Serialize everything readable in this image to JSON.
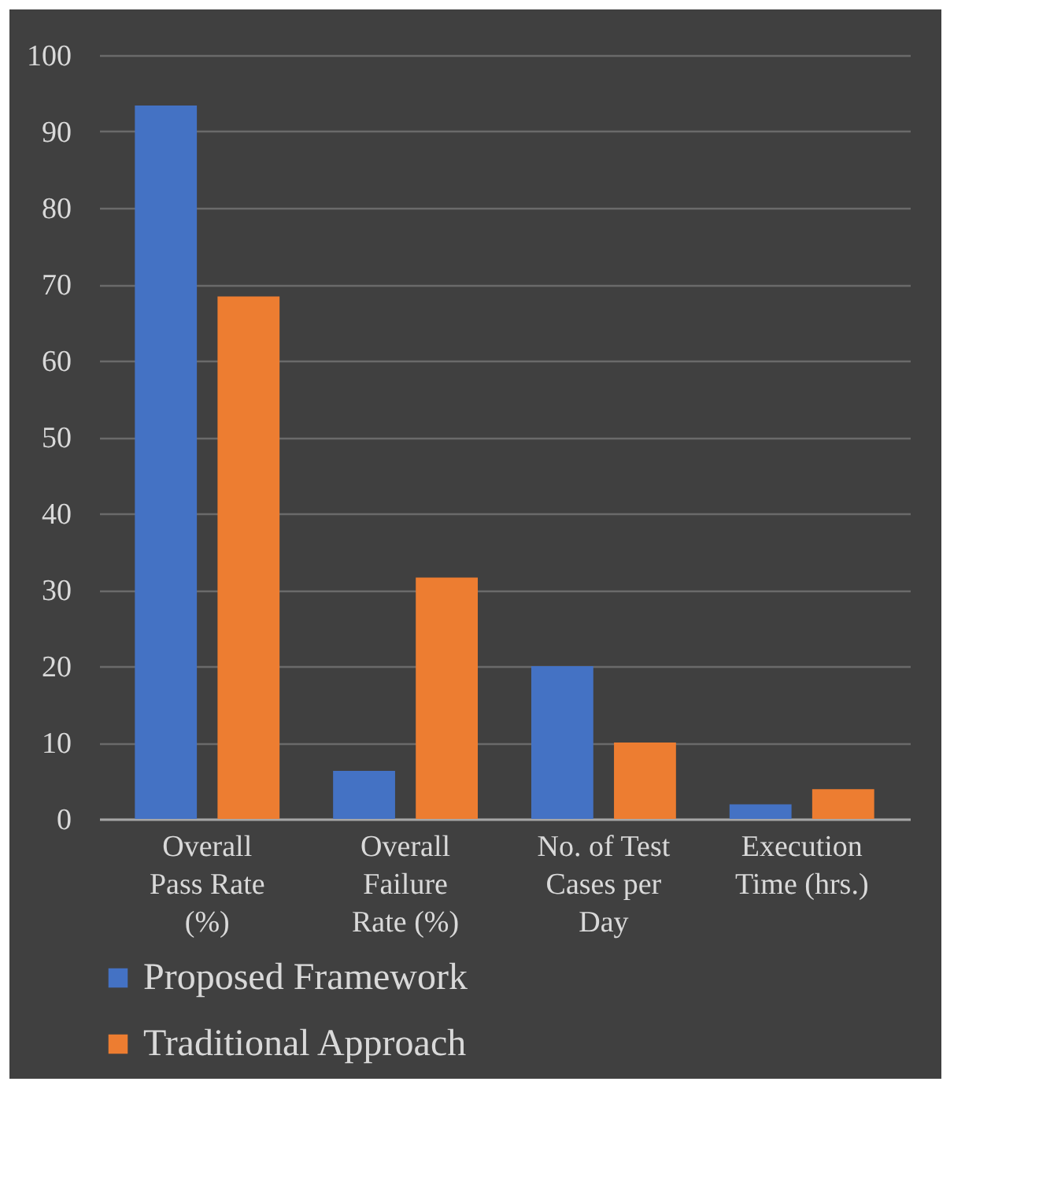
{
  "chart_data": {
    "type": "bar",
    "categories": [
      "Overall Pass Rate (%)",
      "Overall Failure Rate (%)",
      "No. of Test Cases per Day",
      "Execution Time (hrs.)"
    ],
    "series": [
      {
        "name": "Proposed Framework",
        "color": "#4472c4",
        "values": [
          93.4,
          6.3,
          20,
          1.9
        ]
      },
      {
        "name": "Traditional Approach",
        "color": "#ed7d31",
        "values": [
          68.4,
          31.6,
          10,
          3.9
        ]
      }
    ],
    "ylim": [
      0,
      100
    ],
    "yticks": [
      0,
      10,
      20,
      30,
      40,
      50,
      60,
      70,
      80,
      90,
      100
    ],
    "grid": "y",
    "legend": "bottom"
  }
}
